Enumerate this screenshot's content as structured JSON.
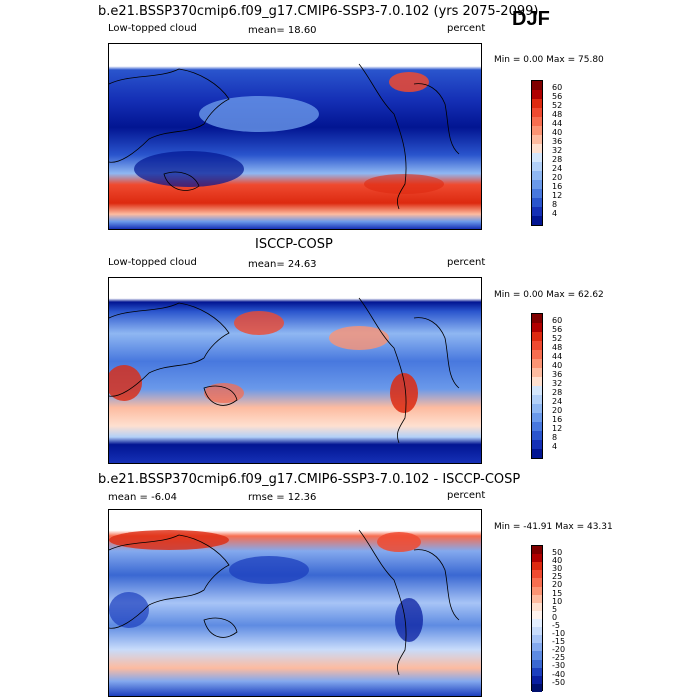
{
  "season": "DJF",
  "chart_data": [
    {
      "type": "heatmap",
      "title": "b.e21.BSSP370cmip6.f09_g17.CMIP6-SSP3-7.0.102 (yrs 2075-2099)",
      "left_label": "Low-topped cloud",
      "center_label": "mean=  18.60",
      "right_label": "percent",
      "minmax_text": "Min =   0.00 Max =  75.80",
      "stats": {
        "mean": 18.6,
        "min": 0.0,
        "max": 75.8
      },
      "levels": [
        "60",
        "56",
        "52",
        "48",
        "44",
        "40",
        "36",
        "32",
        "28",
        "24",
        "20",
        "16",
        "12",
        "8",
        "4"
      ],
      "colors": [
        "#7f0000",
        "#b00000",
        "#dd2a10",
        "#ef4a30",
        "#f76e50",
        "#fb9474",
        "#fdbba0",
        "#fee0d0",
        "#d4e6fb",
        "#b2d0f8",
        "#8fb7f2",
        "#6a99ea",
        "#4878de",
        "#2a55cd",
        "#1530b6",
        "#021592"
      ]
    },
    {
      "type": "heatmap",
      "title": "ISCCP-COSP",
      "left_label": "Low-topped cloud",
      "center_label": "mean=  24.63",
      "right_label": "percent",
      "minmax_text": "Min =   0.00 Max =  62.62",
      "stats": {
        "mean": 24.63,
        "min": 0.0,
        "max": 62.62
      },
      "levels": [
        "60",
        "56",
        "52",
        "48",
        "44",
        "40",
        "36",
        "32",
        "28",
        "24",
        "20",
        "16",
        "12",
        "8",
        "4"
      ],
      "colors": [
        "#7f0000",
        "#b00000",
        "#dd2a10",
        "#ef4a30",
        "#f76e50",
        "#fb9474",
        "#fdbba0",
        "#fee0d0",
        "#d4e6fb",
        "#b2d0f8",
        "#8fb7f2",
        "#6a99ea",
        "#4878de",
        "#2a55cd",
        "#1530b6",
        "#021592"
      ]
    },
    {
      "type": "heatmap",
      "title": "b.e21.BSSP370cmip6.f09_g17.CMIP6-SSP3-7.0.102 - ISCCP-COSP",
      "left_label": "mean =  -6.04",
      "center_label": "rmse =  12.36",
      "right_label": "percent",
      "minmax_text": "Min = -41.91 Max =  43.31",
      "stats": {
        "mean": -6.04,
        "rmse": 12.36,
        "min": -41.91,
        "max": 43.31
      },
      "levels": [
        "50",
        "40",
        "30",
        "25",
        "20",
        "15",
        "10",
        "5",
        "0",
        "-5",
        "-10",
        "-15",
        "-20",
        "-25",
        "-30",
        "-40",
        "-50"
      ],
      "colors": [
        "#7f0000",
        "#b00000",
        "#dd2a10",
        "#ef4a30",
        "#f76e50",
        "#fb9474",
        "#fdbba0",
        "#fee0d0",
        "#fff3ee",
        "#e4efff",
        "#c8dcfb",
        "#a7c4f6",
        "#84a9ee",
        "#5e8be2",
        "#3a68d2",
        "#1c3fbe",
        "#0a1fa0",
        "#00106e"
      ]
    }
  ]
}
